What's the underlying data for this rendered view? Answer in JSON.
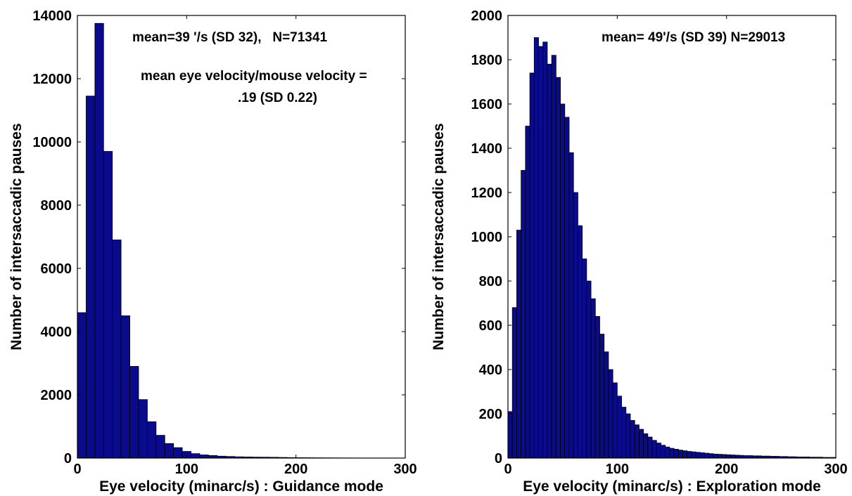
{
  "chart_data": [
    {
      "type": "bar",
      "subtype": "histogram",
      "bar_color": "#0a0a8c",
      "bin_width": 8,
      "x_start": 0,
      "values": [
        4600,
        11450,
        13750,
        9700,
        6900,
        4500,
        2900,
        1850,
        1150,
        720,
        460,
        330,
        210,
        140,
        100,
        80,
        60,
        50,
        40,
        35,
        30,
        28,
        25,
        20,
        15,
        12,
        10,
        8,
        6,
        5,
        4,
        3,
        2,
        2,
        1,
        1,
        1
      ],
      "xlim": [
        0,
        300
      ],
      "ylim": [
        0,
        14000
      ],
      "xticks": [
        0,
        100,
        200,
        300
      ],
      "yticks": [
        0,
        2000,
        4000,
        6000,
        8000,
        10000,
        12000,
        14000
      ],
      "xlabel": "Eye velocity (minarc/s) : Guidance mode",
      "ylabel": "Number of intersaccadic pauses",
      "annotations": [
        "mean=39 '/s (SD 32),   N=71341",
        "mean eye velocity/mouse velocity =",
        ".19 (SD 0.22)"
      ],
      "grid": false
    },
    {
      "type": "bar",
      "subtype": "histogram",
      "bar_color": "#0a0a8c",
      "bin_width": 4,
      "x_start": 0,
      "values": [
        210,
        680,
        1030,
        1300,
        1500,
        1740,
        1900,
        1860,
        1880,
        1780,
        1820,
        1720,
        1600,
        1540,
        1380,
        1200,
        1050,
        900,
        800,
        720,
        640,
        560,
        480,
        400,
        340,
        280,
        230,
        200,
        170,
        150,
        130,
        110,
        95,
        80,
        68,
        58,
        50,
        44,
        40,
        36,
        33,
        30,
        28,
        26,
        24,
        22,
        20,
        18,
        17,
        16,
        15,
        14,
        13,
        12,
        11,
        11,
        10,
        10,
        9,
        9,
        8,
        8,
        7,
        7,
        6,
        6,
        5,
        5,
        5,
        4,
        4,
        4,
        3,
        3,
        3
      ],
      "xlim": [
        0,
        300
      ],
      "ylim": [
        0,
        2000
      ],
      "xticks": [
        0,
        100,
        200,
        300
      ],
      "yticks": [
        0,
        200,
        400,
        600,
        800,
        1000,
        1200,
        1400,
        1600,
        1800,
        2000
      ],
      "xlabel": "Eye velocity (minarc/s) : Exploration mode",
      "ylabel": "Number of intersaccadic pauses",
      "annotations": [
        "mean= 49'/s (SD 39) N=29013"
      ],
      "grid": false
    }
  ]
}
